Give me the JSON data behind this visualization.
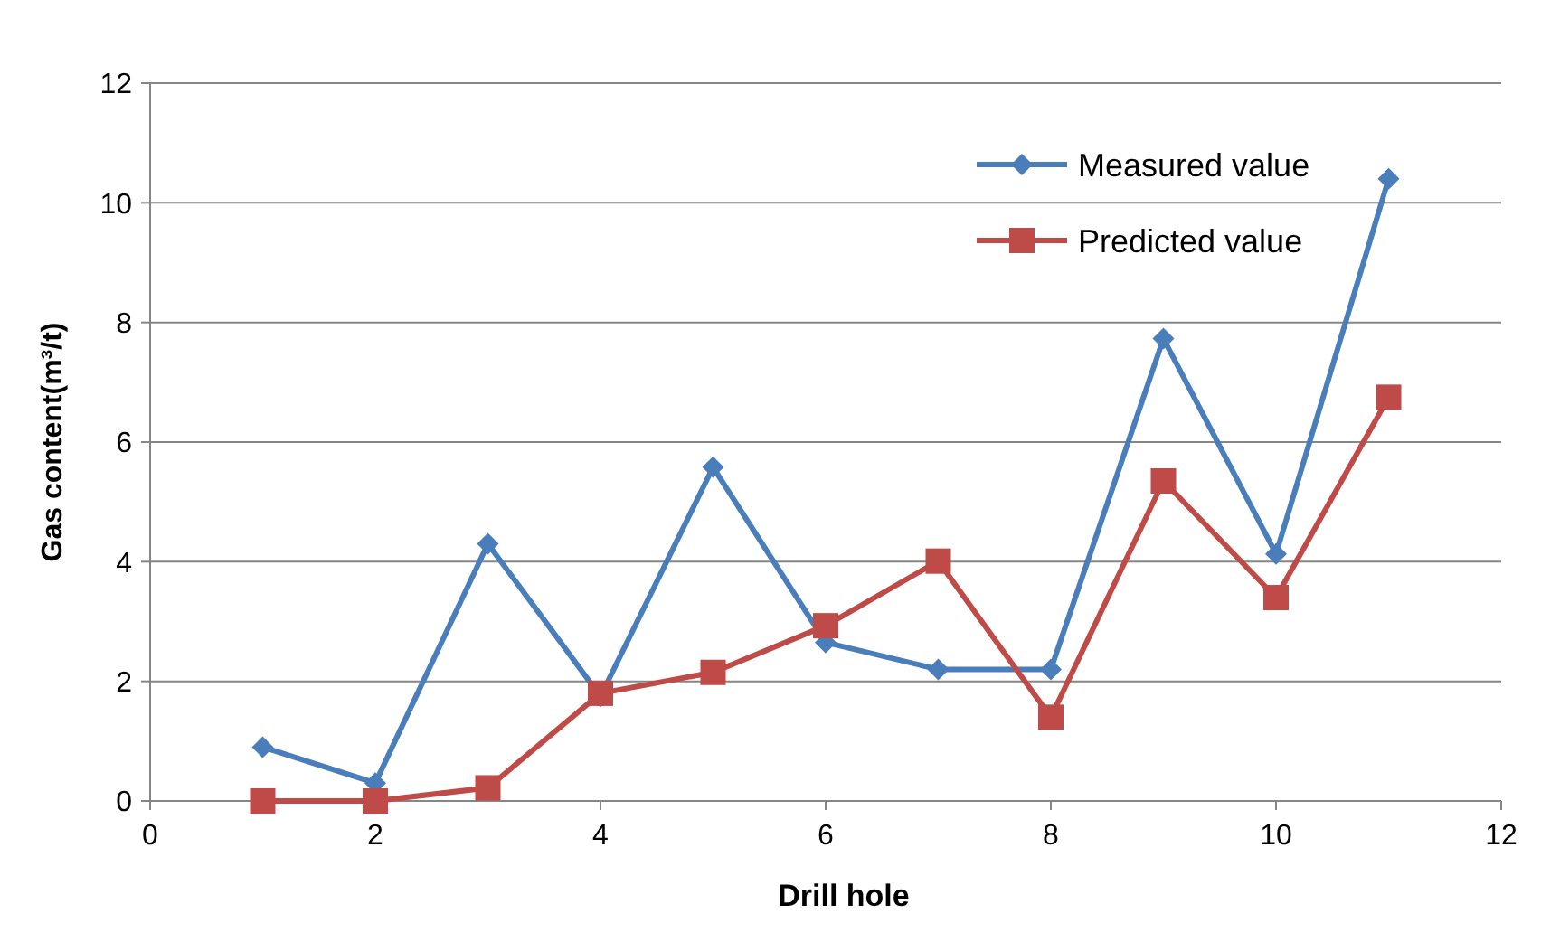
{
  "chart_data": {
    "type": "line",
    "xlabel": "Drill hole",
    "ylabel": "Gas content(m³/t)",
    "xlim": [
      0,
      12
    ],
    "xticks": [
      0,
      2,
      4,
      6,
      8,
      10,
      12
    ],
    "ylim": [
      0,
      12
    ],
    "yticks": [
      0,
      2,
      4,
      6,
      8,
      10,
      12
    ],
    "grid": "y",
    "legend": "top right",
    "line_style": "solid",
    "x": [
      1,
      2,
      3,
      4,
      5,
      6,
      7,
      8,
      9,
      10,
      11
    ],
    "series": [
      {
        "name": "Measured value",
        "color": "#4a7ebb",
        "marker": "diamond",
        "values": [
          0.9,
          0.3,
          4.3,
          1.75,
          5.58,
          2.65,
          2.2,
          2.2,
          7.73,
          4.13,
          10.4
        ]
      },
      {
        "name": "Predicted value",
        "color": "#be4b48",
        "marker": "square",
        "values": [
          0,
          0,
          0.22,
          1.8,
          2.15,
          2.93,
          4.01,
          1.4,
          5.35,
          3.4,
          6.75
        ]
      }
    ]
  }
}
